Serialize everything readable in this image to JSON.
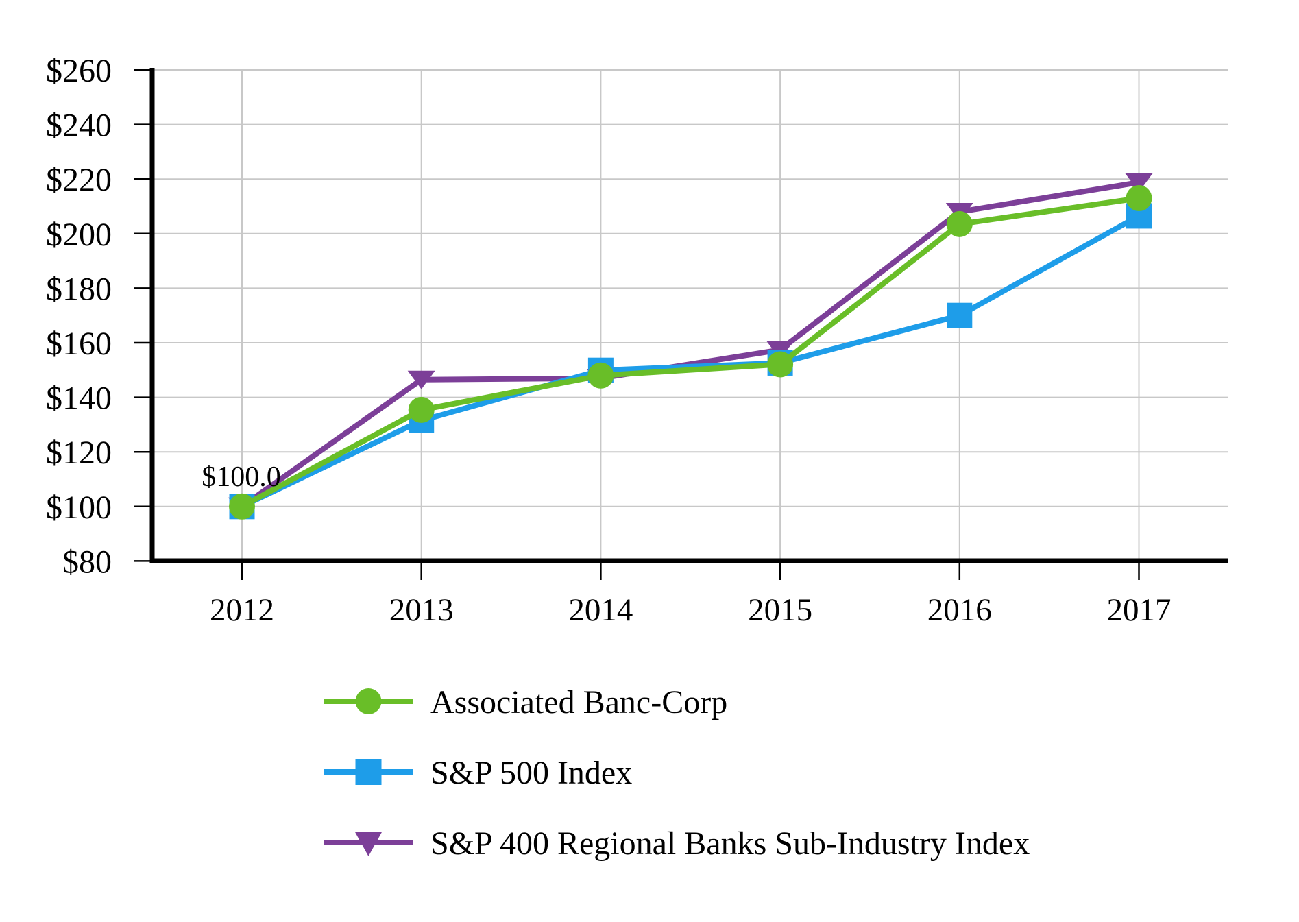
{
  "page": {
    "background": "#FFFFFF",
    "description": "Total shareholder return comparison line chart"
  },
  "chart_data": {
    "type": "line",
    "title": "",
    "xlabel": "",
    "ylabel": "",
    "categories": [
      "2012",
      "2013",
      "2014",
      "2015",
      "2016",
      "2017"
    ],
    "series": [
      {
        "name": "Associated Banc-Corp",
        "color": "#69BE28",
        "marker": "circle",
        "values": [
          100.0,
          135.4,
          148.0,
          152.1,
          203.5,
          213.0
        ]
      },
      {
        "name": "S&P 500 Index",
        "color": "#1E9DE9",
        "marker": "square",
        "values": [
          100.0,
          131.5,
          149.9,
          152.6,
          170.0,
          206.5
        ]
      },
      {
        "name": "S&P 400 Regional Banks Sub-Industry Index",
        "color": "#7C3F98",
        "marker": "triangle-down",
        "values": [
          100.0,
          146.5,
          147.0,
          157.4,
          208.0,
          218.8
        ]
      }
    ],
    "ylim": [
      80,
      260
    ],
    "ytick_step": 20,
    "ytick_labels": [
      "$80",
      "$100",
      "$120",
      "$140",
      "$160",
      "$180",
      "$200",
      "$220",
      "$240",
      "$260"
    ],
    "annotation": {
      "text": "$100.0",
      "category": "2012",
      "value": 100.0
    },
    "grid": true,
    "grid_color": "#C8C8C8",
    "axis_color": "#000000",
    "legend_position": "bottom-left"
  }
}
